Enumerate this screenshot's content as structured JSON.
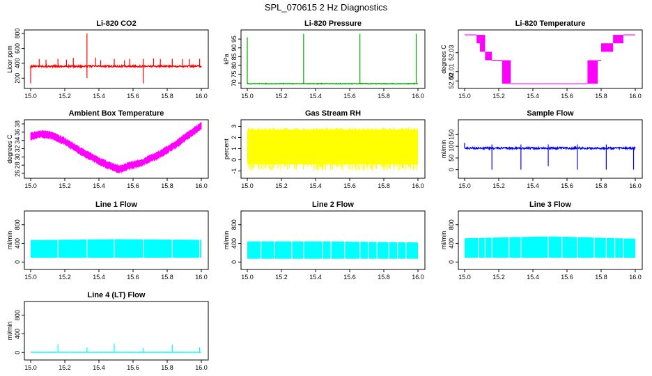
{
  "figure_title": "SPL_070615  2 Hz Diagnostics",
  "chart_data": [
    {
      "type": "line",
      "title": "Li-820 CO2",
      "ylabel": "Licor ppm",
      "color": "#ff0000",
      "xlim": [
        15.0,
        16.0
      ],
      "xticks": [
        "15.0",
        "15.2",
        "15.4",
        "15.6",
        "15.8",
        "16.0"
      ],
      "ylim": [
        100,
        820
      ],
      "yticks": [
        200,
        400,
        600,
        800
      ],
      "signal": {
        "kind": "flat-spikes",
        "base": 360,
        "noise": 12,
        "spikes": [
          [
            15.16,
            460
          ],
          [
            15.33,
            800
          ],
          [
            15.49,
            460
          ],
          [
            15.66,
            460
          ],
          [
            15.83,
            460
          ],
          [
            15.99,
            460
          ]
        ],
        "dips": [
          [
            15.0,
            130
          ],
          [
            15.33,
            200
          ],
          [
            15.66,
            130
          ]
        ]
      }
    },
    {
      "type": "line",
      "title": "Li-820 Pressure",
      "ylabel": "kPa",
      "color": "#00aa00",
      "xlim": [
        15.0,
        16.0
      ],
      "xticks": [
        "15.0",
        "15.2",
        "15.4",
        "15.6",
        "15.8",
        "16.0"
      ],
      "ylim": [
        68.5,
        99
      ],
      "yticks": [
        70,
        75,
        80,
        85,
        90,
        95
      ],
      "signal": {
        "kind": "flat-spikes",
        "base": 69.6,
        "noise": 0.2,
        "spikes": [
          [
            15.0,
            96
          ],
          [
            15.33,
            98
          ],
          [
            15.66,
            98
          ],
          [
            15.99,
            98
          ]
        ],
        "dips": []
      }
    },
    {
      "type": "line",
      "title": "Li-820 Temperature",
      "ylabel": "degrees C",
      "color": "#ff00ff",
      "xlim": [
        15.0,
        16.0
      ],
      "xticks": [
        "15.0",
        "15.2",
        "15.4",
        "15.6",
        "15.8",
        "16.0"
      ],
      "ylim": [
        51.995,
        52.052
      ],
      "yticks": [
        "52.00",
        "52.01",
        "52.03"
      ],
      "signal": {
        "kind": "quantized-toggle"
      }
    },
    {
      "type": "line",
      "title": "Ambient Box Temperature",
      "ylabel": "degrees C",
      "color": "#ff00ff",
      "xlim": [
        15.0,
        16.0
      ],
      "xticks": [
        "15.0",
        "15.2",
        "15.4",
        "15.6",
        "15.8",
        "16.0"
      ],
      "ylim": [
        25.5,
        38.5
      ],
      "yticks": [
        26,
        28,
        30,
        32,
        34,
        36,
        38
      ],
      "signal": {
        "kind": "curve",
        "band": 1.0,
        "points": [
          [
            15.0,
            35.0
          ],
          [
            15.05,
            35.6
          ],
          [
            15.12,
            35.2
          ],
          [
            15.2,
            33.8
          ],
          [
            15.3,
            31.2
          ],
          [
            15.4,
            29.0
          ],
          [
            15.48,
            27.5
          ],
          [
            15.52,
            27.0
          ],
          [
            15.56,
            27.6
          ],
          [
            15.65,
            28.6
          ],
          [
            15.75,
            30.5
          ],
          [
            15.85,
            33.0
          ],
          [
            15.93,
            35.5
          ],
          [
            16.0,
            37.5
          ]
        ]
      }
    },
    {
      "type": "line",
      "title": "Gas Stream RH",
      "ylabel": "percent",
      "color": "#ffff00",
      "xlim": [
        15.0,
        16.0
      ],
      "xticks": [
        "15.0",
        "15.2",
        "15.4",
        "15.6",
        "15.8",
        "16.0"
      ],
      "ylim": [
        -1.4,
        3.4
      ],
      "yticks": [
        -1,
        0,
        1,
        2,
        3
      ],
      "signal": {
        "kind": "noise-band",
        "low": -1.0,
        "high": 2.9,
        "core_low": -0.4,
        "core_high": 2.7
      }
    },
    {
      "type": "line",
      "title": "Sample Flow",
      "ylabel": "ml/min",
      "color": "#0000ff",
      "xlim": [
        15.0,
        16.0
      ],
      "xticks": [
        "15.0",
        "15.2",
        "15.4",
        "15.6",
        "15.8",
        "16.0"
      ],
      "ylim": [
        -25,
        205
      ],
      "yticks": [
        0,
        50,
        100,
        150
      ],
      "signal": {
        "kind": "flat-spikes",
        "base": 92,
        "noise": 4,
        "spikes": [
          [
            15.0,
            115
          ],
          [
            15.16,
            108
          ],
          [
            15.33,
            108
          ],
          [
            15.49,
            108
          ],
          [
            15.66,
            108
          ],
          [
            15.83,
            108
          ]
        ],
        "dips": [
          [
            15.16,
            0
          ],
          [
            15.33,
            0
          ],
          [
            15.49,
            15
          ],
          [
            15.66,
            0
          ],
          [
            15.83,
            0
          ],
          [
            15.99,
            0
          ]
        ]
      }
    },
    {
      "type": "area",
      "title": "Line 1 Flow",
      "ylabel": "ml/min",
      "color": "#00ffff",
      "xlim": [
        15.0,
        16.0
      ],
      "xticks": [
        "15.0",
        "15.2",
        "15.4",
        "15.6",
        "15.8",
        "16.0"
      ],
      "ylim": [
        -100,
        1050
      ],
      "yticks": [
        0,
        400,
        800
      ],
      "signal": {
        "kind": "fill-band",
        "low": 90,
        "high": [
          [
            15.0,
            470
          ],
          [
            15.5,
            490
          ],
          [
            16.0,
            475
          ]
        ],
        "gaps": [
          15.16,
          15.33,
          15.49,
          15.66,
          15.83,
          15.99
        ]
      }
    },
    {
      "type": "area",
      "title": "Line 2 Flow",
      "ylabel": "ml/min",
      "color": "#00ffff",
      "xlim": [
        15.0,
        16.0
      ],
      "xticks": [
        "15.0",
        "15.2",
        "15.4",
        "15.6",
        "15.8",
        "16.0"
      ],
      "ylim": [
        -100,
        1050
      ],
      "yticks": [
        0,
        400,
        800
      ],
      "signal": {
        "kind": "fill-band",
        "low": 70,
        "high": [
          [
            15.0,
            440
          ],
          [
            15.5,
            440
          ],
          [
            16.0,
            420
          ]
        ],
        "gaps": [
          15.08,
          15.16,
          15.26,
          15.33,
          15.44,
          15.49,
          15.57,
          15.66,
          15.71,
          15.76,
          15.83,
          15.88,
          15.93
        ]
      }
    },
    {
      "type": "area",
      "title": "Line 3 Flow",
      "ylabel": "ml/min",
      "color": "#00ffff",
      "xlim": [
        15.0,
        16.0
      ],
      "xticks": [
        "15.0",
        "15.2",
        "15.4",
        "15.6",
        "15.8",
        "16.0"
      ],
      "ylim": [
        -100,
        1050
      ],
      "yticks": [
        0,
        400,
        800
      ],
      "signal": {
        "kind": "fill-band",
        "low": 90,
        "high": [
          [
            15.0,
            510
          ],
          [
            15.5,
            550
          ],
          [
            16.0,
            500
          ]
        ],
        "gaps": [
          15.08,
          15.12,
          15.16,
          15.26,
          15.33,
          15.49,
          15.57,
          15.66,
          15.76,
          15.83,
          15.88,
          15.93
        ]
      }
    },
    {
      "type": "line",
      "title": "Line 4 (LT) Flow",
      "ylabel": "ml/min",
      "color": "#00ffff",
      "xlim": [
        15.0,
        16.0
      ],
      "xticks": [
        "15.0",
        "15.2",
        "15.4",
        "15.6",
        "15.8",
        "16.0"
      ],
      "ylim": [
        -100,
        1050
      ],
      "yticks": [
        0,
        400,
        800
      ],
      "signal": {
        "kind": "flat-spikes",
        "base": 5,
        "noise": 3,
        "spikes": [
          [
            15.16,
            180
          ],
          [
            15.33,
            110
          ],
          [
            15.49,
            190
          ],
          [
            15.66,
            100
          ],
          [
            15.83,
            170
          ],
          [
            15.99,
            110
          ]
        ],
        "dips": []
      }
    }
  ]
}
